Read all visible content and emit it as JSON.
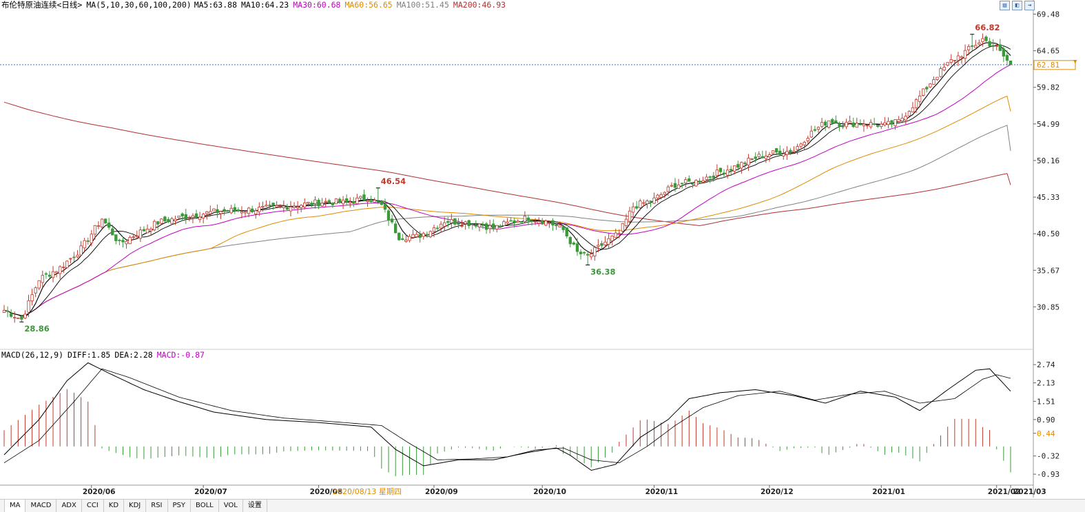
{
  "header": {
    "title": "布伦特原油连续<日线>",
    "ma_label": "MA(5,10,30,60,100,200)",
    "ma": [
      {
        "label": "MA5:63.88",
        "color": "#000000"
      },
      {
        "label": "MA10:64.23",
        "color": "#000000"
      },
      {
        "label": "MA30:60.68",
        "color": "#c000c0"
      },
      {
        "label": "MA60:56.65",
        "color": "#e08a00"
      },
      {
        "label": "MA100:51.45",
        "color": "#808080"
      },
      {
        "label": "MA200:46.93",
        "color": "#b03030"
      }
    ]
  },
  "macd_header": {
    "label": "MACD(26,12,9)",
    "diff": "DIFF:1.85",
    "dea": "DEA:2.28",
    "macd": "MACD:-0.87"
  },
  "toolbar": {
    "icons": [
      "zoom-in-icon",
      "zoom-out-icon",
      "scroll-icon"
    ]
  },
  "tabs": [
    "MA",
    "MACD",
    "ADX",
    "CCI",
    "KD",
    "KDJ",
    "RSI",
    "PSY",
    "BOLL",
    "VOL",
    "设置"
  ],
  "selected_date_label": "2020/08/13 星期四",
  "colors": {
    "up": "#c0392b",
    "down": "#3a9a3a",
    "ma5": "#000000",
    "ma10": "#000000",
    "ma30": "#c000c0",
    "ma60": "#e08a00",
    "ma100": "#808080",
    "ma200": "#b03030",
    "last_price": "#e08a00",
    "hline": "#3a7bd5"
  },
  "chart_data": [
    {
      "type": "candlestick",
      "title": "布伦特原油连续<日线>",
      "x_ticks": [
        "2020/06",
        "2020/07",
        "2020/08",
        "2020/09",
        "2020/10",
        "2020/11",
        "2020/12",
        "2021/01",
        "2021/02",
        "2021/03"
      ],
      "y_ticks": [
        69.48,
        64.65,
        59.82,
        54.99,
        50.16,
        45.33,
        40.5,
        35.67,
        30.85
      ],
      "ylim": [
        25.6,
        70.8
      ],
      "last_price": 62.81,
      "annotations": [
        {
          "text": "66.82",
          "value": 66.82,
          "kind": "high",
          "color": "#c0392b"
        },
        {
          "text": "46.54",
          "value": 46.54,
          "kind": "high",
          "color": "#c0392b"
        },
        {
          "text": "36.38",
          "value": 36.38,
          "kind": "low",
          "color": "#3a9a3a"
        },
        {
          "text": "28.86",
          "value": 28.86,
          "kind": "low",
          "color": "#3a9a3a"
        }
      ],
      "close_anchors": [
        [
          0,
          30.4
        ],
        [
          5,
          29.2
        ],
        [
          10,
          34.5
        ],
        [
          16,
          36.0
        ],
        [
          22,
          38.5
        ],
        [
          28,
          42.5
        ],
        [
          33,
          39.2
        ],
        [
          38,
          40.5
        ],
        [
          44,
          42.0
        ],
        [
          50,
          42.6
        ],
        [
          56,
          43.1
        ],
        [
          62,
          43.5
        ],
        [
          68,
          43.6
        ],
        [
          74,
          43.8
        ],
        [
          80,
          44.1
        ],
        [
          86,
          44.4
        ],
        [
          92,
          44.7
        ],
        [
          98,
          44.6
        ],
        [
          104,
          45.3
        ],
        [
          108,
          44.2
        ],
        [
          113,
          40.1
        ],
        [
          118,
          40.1
        ],
        [
          122,
          41.0
        ],
        [
          126,
          42.2
        ],
        [
          131,
          42.0
        ],
        [
          136,
          41.8
        ],
        [
          140,
          41.2
        ],
        [
          146,
          42.2
        ],
        [
          150,
          42.6
        ],
        [
          156,
          42.0
        ],
        [
          160,
          41.0
        ],
        [
          164,
          38.0
        ],
        [
          167,
          37.5
        ],
        [
          172,
          39.4
        ],
        [
          176,
          40.5
        ],
        [
          180,
          44.1
        ],
        [
          186,
          45.0
        ],
        [
          192,
          47.0
        ],
        [
          198,
          47.4
        ],
        [
          204,
          48.5
        ],
        [
          210,
          49.5
        ],
        [
          216,
          50.7
        ],
        [
          222,
          51.3
        ],
        [
          226,
          51.5
        ],
        [
          230,
          53.5
        ],
        [
          236,
          55.5
        ],
        [
          240,
          55.0
        ],
        [
          246,
          55.1
        ],
        [
          252,
          54.8
        ],
        [
          256,
          55.3
        ],
        [
          261,
          58.0
        ],
        [
          266,
          61.0
        ],
        [
          271,
          63.3
        ],
        [
          276,
          64.8
        ],
        [
          280,
          66.2
        ],
        [
          284,
          65.0
        ],
        [
          288,
          62.8
        ]
      ],
      "ma30_end": 60.68,
      "ma60_end": 56.65,
      "ma100_end": 51.45,
      "ma200_end": 46.93
    },
    {
      "type": "macd",
      "title": "MACD(26,12,9)",
      "y_ticks": [
        2.74,
        2.13,
        1.51,
        0.9,
        0.44,
        -0.32,
        -0.93
      ],
      "ylim": [
        -1.25,
        2.95
      ],
      "diff_anchors": [
        [
          0,
          -0.28
        ],
        [
          10,
          0.9
        ],
        [
          18,
          2.2
        ],
        [
          24,
          2.8
        ],
        [
          30,
          2.45
        ],
        [
          40,
          1.9
        ],
        [
          50,
          1.5
        ],
        [
          60,
          1.15
        ],
        [
          75,
          0.9
        ],
        [
          90,
          0.8
        ],
        [
          105,
          0.65
        ],
        [
          112,
          -0.1
        ],
        [
          120,
          -0.65
        ],
        [
          130,
          -0.45
        ],
        [
          140,
          -0.45
        ],
        [
          150,
          -0.2
        ],
        [
          158,
          -0.05
        ],
        [
          162,
          -0.3
        ],
        [
          168,
          -0.8
        ],
        [
          175,
          -0.6
        ],
        [
          182,
          0.3
        ],
        [
          190,
          0.9
        ],
        [
          196,
          1.6
        ],
        [
          205,
          1.8
        ],
        [
          215,
          1.9
        ],
        [
          226,
          1.7
        ],
        [
          235,
          1.45
        ],
        [
          245,
          1.85
        ],
        [
          255,
          1.65
        ],
        [
          262,
          1.2
        ],
        [
          270,
          1.9
        ],
        [
          278,
          2.55
        ],
        [
          282,
          2.6
        ],
        [
          288,
          1.85
        ]
      ],
      "dea_anchors": [
        [
          0,
          -0.55
        ],
        [
          10,
          0.2
        ],
        [
          20,
          1.5
        ],
        [
          28,
          2.6
        ],
        [
          36,
          2.3
        ],
        [
          50,
          1.65
        ],
        [
          65,
          1.2
        ],
        [
          80,
          0.95
        ],
        [
          95,
          0.82
        ],
        [
          108,
          0.7
        ],
        [
          116,
          0.1
        ],
        [
          124,
          -0.45
        ],
        [
          134,
          -0.42
        ],
        [
          144,
          -0.35
        ],
        [
          152,
          -0.12
        ],
        [
          160,
          -0.05
        ],
        [
          168,
          -0.45
        ],
        [
          176,
          -0.55
        ],
        [
          184,
          0.0
        ],
        [
          192,
          0.7
        ],
        [
          200,
          1.3
        ],
        [
          210,
          1.7
        ],
        [
          222,
          1.85
        ],
        [
          232,
          1.55
        ],
        [
          242,
          1.75
        ],
        [
          252,
          1.85
        ],
        [
          262,
          1.45
        ],
        [
          272,
          1.6
        ],
        [
          280,
          2.25
        ],
        [
          284,
          2.4
        ],
        [
          288,
          2.28
        ]
      ],
      "last_histogram": -0.87
    }
  ]
}
